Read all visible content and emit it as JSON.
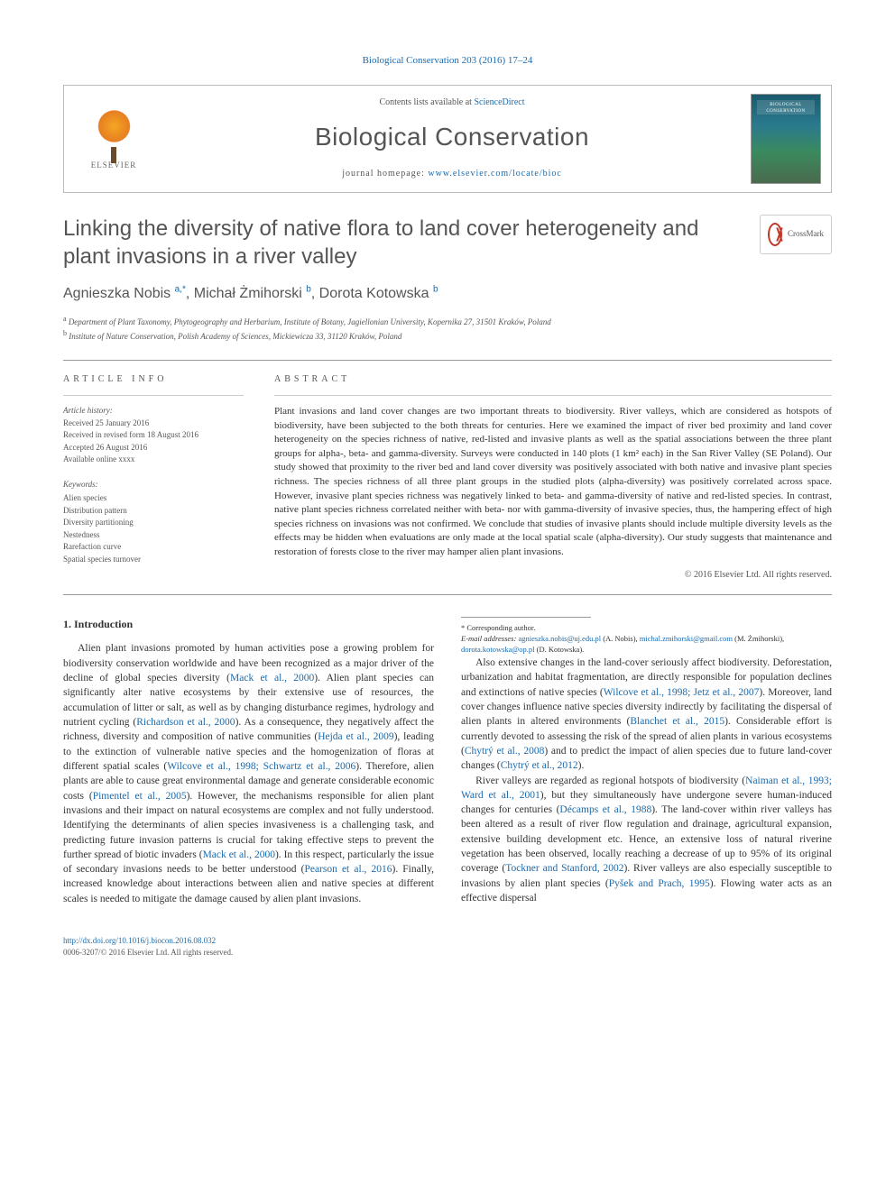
{
  "journal_ref": "Biological Conservation 203 (2016) 17–24",
  "header": {
    "elsevier_label": "ELSEVIER",
    "contents_prefix": "Contents lists available at ",
    "contents_link": "ScienceDirect",
    "journal_name": "Biological Conservation",
    "homepage_prefix": "journal homepage: ",
    "homepage_link": "www.elsevier.com/locate/bioc",
    "cover_label": "BIOLOGICAL CONSERVATION"
  },
  "title": "Linking the diversity of native flora to land cover heterogeneity and plant invasions in a river valley",
  "crossmark_label": "CrossMark",
  "authors": [
    {
      "name": "Agnieszka Nobis",
      "aff": "a,*"
    },
    {
      "name": "Michał Żmihorski",
      "aff": "b"
    },
    {
      "name": "Dorota Kotowska",
      "aff": "b"
    }
  ],
  "affiliations": [
    {
      "sup": "a",
      "text": "Department of Plant Taxonomy, Phytogeography and Herbarium, Institute of Botany, Jagiellonian University, Kopernika 27, 31501 Kraków, Poland"
    },
    {
      "sup": "b",
      "text": "Institute of Nature Conservation, Polish Academy of Sciences, Mickiewicza 33, 31120 Kraków, Poland"
    }
  ],
  "article_info": {
    "label": "ARTICLE INFO",
    "history_label": "Article history:",
    "history": [
      "Received 25 January 2016",
      "Received in revised form 18 August 2016",
      "Accepted 26 August 2016",
      "Available online xxxx"
    ],
    "keywords_label": "Keywords:",
    "keywords": [
      "Alien species",
      "Distribution pattern",
      "Diversity partitioning",
      "Nestedness",
      "Rarefaction curve",
      "Spatial species turnover"
    ]
  },
  "abstract": {
    "label": "ABSTRACT",
    "text": "Plant invasions and land cover changes are two important threats to biodiversity. River valleys, which are considered as hotspots of biodiversity, have been subjected to the both threats for centuries. Here we examined the impact of river bed proximity and land cover heterogeneity on the species richness of native, red-listed and invasive plants as well as the spatial associations between the three plant groups for alpha-, beta- and gamma-diversity. Surveys were conducted in 140 plots (1 km² each) in the San River Valley (SE Poland). Our study showed that proximity to the river bed and land cover diversity was positively associated with both native and invasive plant species richness. The species richness of all three plant groups in the studied plots (alpha-diversity) was positively correlated across space. However, invasive plant species richness was negatively linked to beta- and gamma-diversity of native and red-listed species. In contrast, native plant species richness correlated neither with beta- nor with gamma-diversity of invasive species, thus, the hampering effect of high species richness on invasions was not confirmed. We conclude that studies of invasive plants should include multiple diversity levels as the effects may be hidden when evaluations are only made at the local spatial scale (alpha-diversity). Our study suggests that maintenance and restoration of forests close to the river may hamper alien plant invasions.",
    "copyright": "© 2016 Elsevier Ltd. All rights reserved."
  },
  "body": {
    "heading": "1. Introduction",
    "p1_a": "Alien plant invasions promoted by human activities pose a growing problem for biodiversity conservation worldwide and have been recognized as a major driver of the decline of global species diversity (",
    "p1_l1": "Mack et al., 2000",
    "p1_b": "). Alien plant species can significantly alter native ecosystems by their extensive use of resources, the accumulation of litter or salt, as well as by changing disturbance regimes, hydrology and nutrient cycling (",
    "p1_l2": "Richardson et al., 2000",
    "p1_c": "). As a consequence, they negatively affect the richness, diversity and composition of native communities (",
    "p1_l3": "Hejda et al., 2009",
    "p1_d": "), leading to the extinction of vulnerable native species and the homogenization of floras at different spatial scales (",
    "p1_l4": "Wilcove et al., 1998; Schwartz et al., 2006",
    "p1_e": "). Therefore, alien plants are able to cause great environmental damage and generate considerable economic costs (",
    "p1_l5": "Pimentel et al., 2005",
    "p1_f": "). However, the mechanisms responsible for alien plant invasions and their impact on natural ecosystems are complex and not fully understood. Identifying the determinants of alien species invasiveness is a challenging task, and predicting future invasion patterns is crucial for taking effective steps to prevent the further spread of biotic invaders (",
    "p1_l6": "Mack et al., 2000",
    "p1_g": "). In this respect, particularly the issue of secondary invasions needs to be better understood (",
    "p1_l7": "Pearson et al., 2016",
    "p1_h": "). Finally, increased knowledge about interactions between alien and native species at different scales is needed to mitigate the damage caused by alien plant invasions.",
    "p2_a": "Also extensive changes in the land-cover seriously affect biodiversity. Deforestation, urbanization and habitat fragmentation, are directly responsible for population declines and extinctions of native species (",
    "p2_l1": "Wilcove et al., 1998; Jetz et al., 2007",
    "p2_b": "). Moreover, land cover changes influence native species diversity indirectly by facilitating the dispersal of alien plants in altered environments (",
    "p2_l2": "Blanchet et al., 2015",
    "p2_c": "). Considerable effort is currently devoted to assessing the risk of the spread of alien plants in various ecosystems (",
    "p2_l3": "Chytrý et al., 2008",
    "p2_d": ") and to predict the impact of alien species due to future land-cover changes (",
    "p2_l4": "Chytrý et al., 2012",
    "p2_e": ").",
    "p3_a": "River valleys are regarded as regional hotspots of biodiversity (",
    "p3_l1": "Naiman et al., 1993; Ward et al., 2001",
    "p3_b": "), but they simultaneously have undergone severe human-induced changes for centuries (",
    "p3_l2": "Décamps et al., 1988",
    "p3_c": "). The land-cover within river valleys has been altered as a result of river flow regulation and drainage, agricultural expansion, extensive building development etc. Hence, an extensive loss of natural riverine vegetation has been observed, locally reaching a decrease of up to 95% of its original coverage (",
    "p3_l3": "Tockner and Stanford, 2002",
    "p3_d": "). River valleys are also especially susceptible to invasions by alien plant species (",
    "p3_l4": "Pyšek and Prach, 1995",
    "p3_e": "). Flowing water acts as an effective dispersal"
  },
  "footnotes": {
    "corresponding": "* Corresponding author.",
    "emails_label": "E-mail addresses:",
    "e1": "agnieszka.nobis@uj.edu.pl",
    "n1": " (A. Nobis), ",
    "e2": "michal.zmihorski@gmail.com",
    "n2": " (M. Żmihorski), ",
    "e3": "dorota.kotowska@op.pl",
    "n3": " (D. Kotowska)."
  },
  "footer": {
    "doi": "http://dx.doi.org/10.1016/j.biocon.2016.08.032",
    "issn_line": "0006-3207/© 2016 Elsevier Ltd. All rights reserved."
  },
  "colors": {
    "link": "#1a6aad",
    "text": "#333333",
    "muted": "#555555",
    "rule": "#999999"
  }
}
